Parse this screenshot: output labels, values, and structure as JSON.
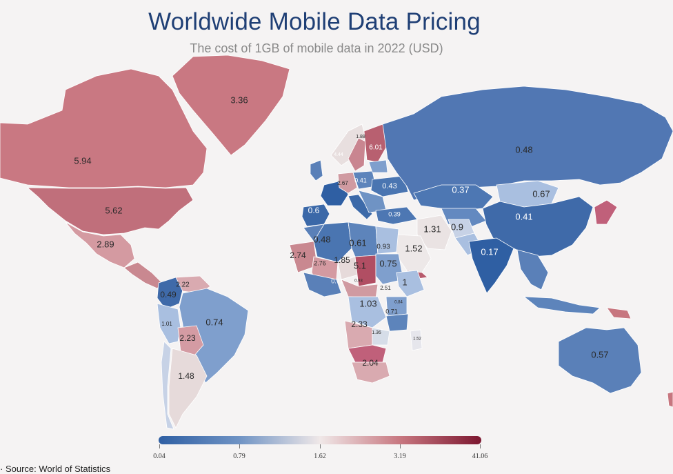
{
  "title": "Worldwide Mobile Data Pricing",
  "subtitle": "The cost of 1GB of mobile data in 2022 (USD)",
  "source": "· Source: World of Statistics",
  "legend": {
    "ticks": [
      "0.04",
      "0.79",
      "1.62",
      "3.19",
      "41.06"
    ],
    "colors": [
      "#2f5fa3",
      "#6f93c4",
      "#f0e8e8",
      "#c7767f",
      "#7c1730"
    ]
  },
  "labels": {
    "canada": "5.94",
    "usa": "5.62",
    "greenland": "3.36",
    "mexico": "2.89",
    "colombia": "0.49",
    "venezuela": "2.22",
    "brazil": "0.74",
    "peru": "1.01",
    "bolivia": "2.23",
    "argentina": "1.48",
    "russia": "0.48",
    "kazakhstan": "0.37",
    "mongolia": "0.67",
    "china": "0.41",
    "india": "0.17",
    "australia": "0.57",
    "iran": "1.31",
    "afghanistan": "0.9",
    "saudi": "1.52",
    "algeria": "0.48",
    "libya": "0.61",
    "egypt": "0.93",
    "mauritania": "2.74",
    "mali": "2.76",
    "niger": "1.85",
    "chad": "5.1",
    "sudan": "0.75",
    "ethiopia": "1",
    "drc": "1.03",
    "tanzania": "0.71",
    "angola": "2.33",
    "southafrica": "2.04",
    "spain": "0.6",
    "norway": "1.88",
    "finland": "6.01",
    "poland": "0.41",
    "ukraine": "0.43",
    "germany": "2.67",
    "turkey": "0.39",
    "sweden": "4.44",
    "kenya": "0.84",
    "zambia": "1.36",
    "madagascar": "1.52",
    "ghana": "0.71",
    "nigeria": "0.93",
    "cameroon": "2.51"
  }
}
